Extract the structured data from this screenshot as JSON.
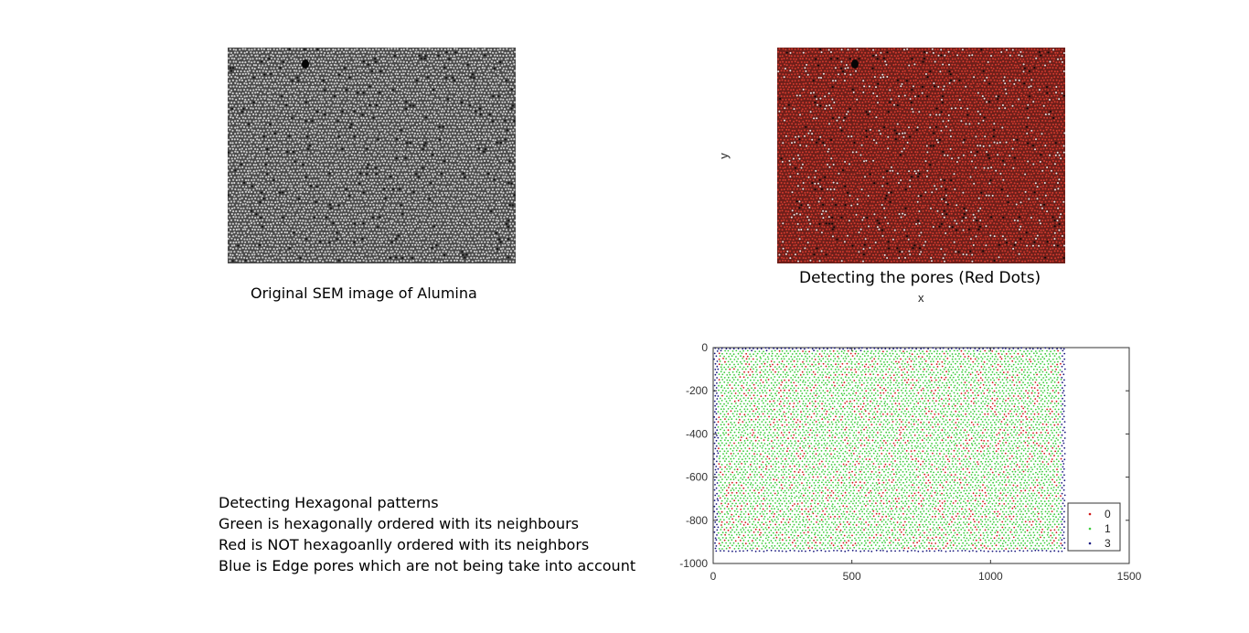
{
  "captions": {
    "sem": "Original SEM image of Alumina",
    "pores": "Detecting the pores (Red Dots)"
  },
  "top_axis_labels": {
    "x": "x",
    "y": "y"
  },
  "description": [
    "Detecting Hexagonal patterns",
    "Green is hexagonally ordered with its neighbours",
    "Red is NOT hexagoanlly ordered with its neighbors",
    "Blue is Edge pores which are not being take into account"
  ],
  "colors": {
    "sem_bg": "#4a4a4a",
    "sem_dot": "#cfcfcf",
    "pore_bg": "#6e1f1a",
    "pore_dot": "#d23a2e",
    "green": "#3ccc3c",
    "red": "#d01818",
    "blue": "#1a1a80"
  },
  "chart_data": {
    "type": "scatter",
    "xlim": [
      0,
      1500
    ],
    "ylim": [
      -1000,
      0
    ],
    "xticks": [
      0,
      500,
      1000,
      1500
    ],
    "yticks": [
      0,
      -200,
      -400,
      -600,
      -800,
      -1000
    ],
    "legend_position": "bottom-right",
    "data_extent": {
      "x": [
        0,
        1270
      ],
      "y": [
        -950,
        0
      ]
    },
    "series": [
      {
        "name": "0",
        "color": "#d01818",
        "description": "non-hexagonal pores"
      },
      {
        "name": "1",
        "color": "#3ccc3c",
        "description": "hexagonally ordered pores"
      },
      {
        "name": "3",
        "color": "#1a1a80",
        "description": "edge pores"
      }
    ]
  }
}
